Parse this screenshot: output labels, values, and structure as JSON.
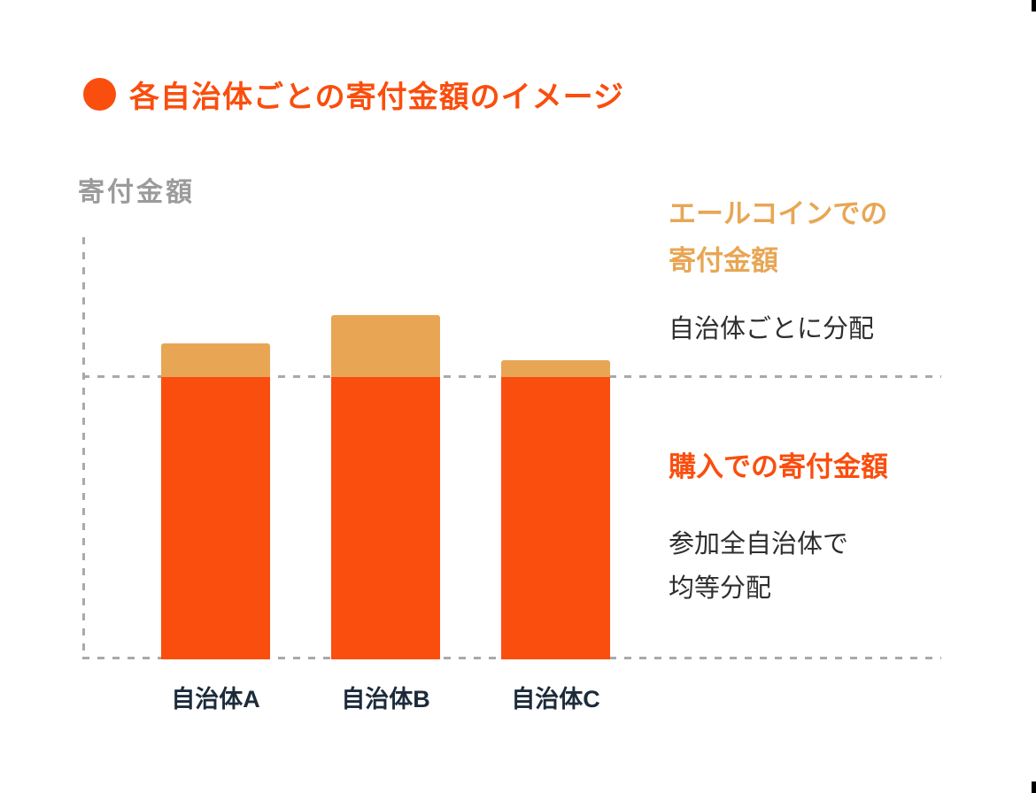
{
  "title": {
    "text": "各自治体ごとの寄付金額のイメージ"
  },
  "y_axis": {
    "label": "寄付金額"
  },
  "legend_yell": {
    "title_line1": "エールコインでの",
    "title_line2": "寄付金額",
    "desc": "自治体ごとに分配"
  },
  "legend_purchase": {
    "title": "購入での寄付金額",
    "desc_line1": "参加全自治体で",
    "desc_line2": "均等分配"
  },
  "colors": {
    "accent_orange": "#fa4e0e",
    "accent_tan": "#e8a654",
    "axis_gray": "#a9a9a9",
    "label_gray": "#9b9b9b",
    "text_dark": "#2e2e2e",
    "category_navy": "#1c2b3a"
  },
  "chart_data": {
    "type": "bar",
    "stacked": true,
    "title": "各自治体ごとの寄付金額のイメージ",
    "ylabel": "寄付金額",
    "categories": [
      "自治体A",
      "自治体B",
      "自治体C"
    ],
    "series": [
      {
        "name": "購入での寄付金額",
        "color": "#fa4e0e",
        "values": [
          100,
          100,
          100
        ]
      },
      {
        "name": "エールコインでの寄付金額",
        "color": "#e8a654",
        "values": [
          12,
          22,
          6
        ]
      }
    ],
    "ylim": [
      0,
      150
    ],
    "y_ticks_visible": false,
    "gridlines": "dashed horizontal line at y=100 (purchase level) and baseline at y=0",
    "legend_position": "right",
    "annotations": [
      {
        "series": "エールコインでの寄付金額",
        "note": "自治体ごとに分配"
      },
      {
        "series": "購入での寄付金額",
        "note": "参加全自治体で均等分配"
      }
    ]
  }
}
